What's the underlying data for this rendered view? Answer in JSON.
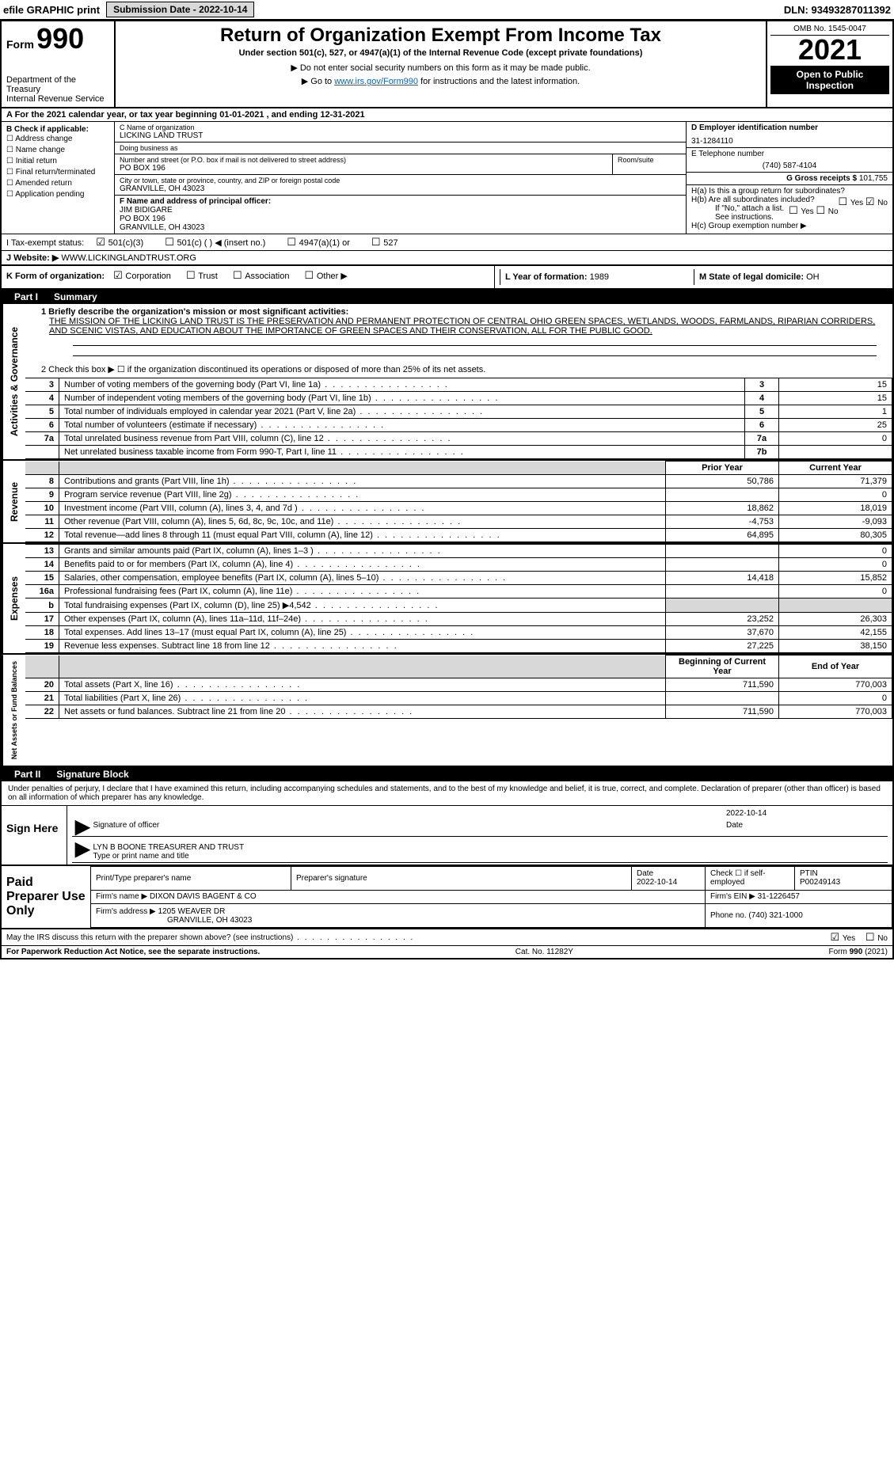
{
  "top_bar": {
    "efile_label": "efile GRAPHIC print",
    "submission_label": "Submission Date - 2022-10-14",
    "dln": "DLN: 93493287011392"
  },
  "header": {
    "form_word": "Form",
    "form_number": "990",
    "dept1": "Department of the Treasury",
    "dept2": "Internal Revenue Service",
    "title": "Return of Organization Exempt From Income Tax",
    "subtitle": "Under section 501(c), 527, or 4947(a)(1) of the Internal Revenue Code (except private foundations)",
    "note1": "Do not enter social security numbers on this form as it may be made public.",
    "note2_pre": "Go to ",
    "note2_link": "www.irs.gov/Form990",
    "note2_post": " for instructions and the latest information.",
    "omb": "OMB No. 1545-0047",
    "year": "2021",
    "badge": "Open to Public Inspection"
  },
  "row_a": "A For the 2021 calendar year, or tax year beginning 01-01-2021    , and ending 12-31-2021",
  "col_b": {
    "label": "B Check if applicable:",
    "items": [
      "Address change",
      "Name change",
      "Initial return",
      "Final return/terminated",
      "Amended return",
      "Application pending"
    ]
  },
  "col_c": {
    "c_label": "C Name of organization",
    "org": "LICKING LAND TRUST",
    "dba_label": "Doing business as",
    "dba": "",
    "addr_label": "Number and street (or P.O. box if mail is not delivered to street address)",
    "addr": "PO BOX 196",
    "room_label": "Room/suite",
    "city_label": "City or town, state or province, country, and ZIP or foreign postal code",
    "city": "GRANVILLE, OH  43023",
    "f_label": "F Name and address of principal officer:",
    "f_name": "JIM BIDIGARE",
    "f_addr1": "PO BOX 196",
    "f_addr2": "GRANVILLE, OH  43023"
  },
  "col_right": {
    "d_label": "D Employer identification number",
    "ein": "31-1284110",
    "e_label": "E Telephone number",
    "phone": "(740) 587-4104",
    "g_label": "G Gross receipts $",
    "g_val": "101,755",
    "h_a": "H(a)  Is this a group return for subordinates?",
    "h_a_yes": "Yes",
    "h_a_no": "No",
    "h_b": "H(b)  Are all subordinates included?",
    "h_b_yes": "Yes",
    "h_b_no": "No",
    "h_note": "If \"No,\" attach a list. See instructions.",
    "h_c": "H(c)  Group exemption number ▶"
  },
  "row_i": {
    "label": "I   Tax-exempt status:",
    "o1": "501(c)(3)",
    "o2": "501(c) (   ) ◀ (insert no.)",
    "o3": "4947(a)(1) or",
    "o4": "527"
  },
  "row_j": {
    "label": "J   Website: ▶",
    "val": "WWW.LICKINGLANDTRUST.ORG"
  },
  "row_k": {
    "label": "K Form of organization:",
    "o1": "Corporation",
    "o2": "Trust",
    "o3": "Association",
    "o4": "Other ▶"
  },
  "row_l": {
    "l_label": "L Year of formation:",
    "l_val": "1989",
    "m_label": "M State of legal domicile:",
    "m_val": "OH"
  },
  "part1": {
    "title": "Part I",
    "name": "Summary",
    "line1_label": "1  Briefly describe the organization's mission or most significant activities:",
    "mission": "THE MISSION OF THE LICKING LAND TRUST IS THE PRESERVATION AND PERMANENT PROTECTION OF CENTRAL OHIO GREEN SPACES, WETLANDS, WOODS, FARMLANDS, RIPARIAN CORRIDERS, AND SCENIC VISTAS, AND EDUCATION ABOUT THE IMPORTANCE OF GREEN SPACES AND THEIR CONSERVATION, ALL FOR THE PUBLIC GOOD.",
    "line2": "2  Check this box ▶ ☐  if the organization discontinued its operations or disposed of more than 25% of its net assets."
  },
  "gov_lines": [
    {
      "n": "3",
      "d": "Number of voting members of the governing body (Part VI, line 1a)",
      "b": "3",
      "v": "15"
    },
    {
      "n": "4",
      "d": "Number of independent voting members of the governing body (Part VI, line 1b)",
      "b": "4",
      "v": "15"
    },
    {
      "n": "5",
      "d": "Total number of individuals employed in calendar year 2021 (Part V, line 2a)",
      "b": "5",
      "v": "1"
    },
    {
      "n": "6",
      "d": "Total number of volunteers (estimate if necessary)",
      "b": "6",
      "v": "25"
    },
    {
      "n": "7a",
      "d": "Total unrelated business revenue from Part VIII, column (C), line 12",
      "b": "7a",
      "v": "0"
    },
    {
      "n": "",
      "d": "Net unrelated business taxable income from Form 990-T, Part I, line 11",
      "b": "7b",
      "v": ""
    }
  ],
  "rev_headers": {
    "prior": "Prior Year",
    "current": "Current Year"
  },
  "rev_lines": [
    {
      "n": "8",
      "d": "Contributions and grants (Part VIII, line 1h)",
      "p": "50,786",
      "c": "71,379"
    },
    {
      "n": "9",
      "d": "Program service revenue (Part VIII, line 2g)",
      "p": "",
      "c": "0"
    },
    {
      "n": "10",
      "d": "Investment income (Part VIII, column (A), lines 3, 4, and 7d )",
      "p": "18,862",
      "c": "18,019"
    },
    {
      "n": "11",
      "d": "Other revenue (Part VIII, column (A), lines 5, 6d, 8c, 9c, 10c, and 11e)",
      "p": "-4,753",
      "c": "-9,093"
    },
    {
      "n": "12",
      "d": "Total revenue—add lines 8 through 11 (must equal Part VIII, column (A), line 12)",
      "p": "64,895",
      "c": "80,305"
    }
  ],
  "exp_lines": [
    {
      "n": "13",
      "d": "Grants and similar amounts paid (Part IX, column (A), lines 1–3 )",
      "p": "",
      "c": "0"
    },
    {
      "n": "14",
      "d": "Benefits paid to or for members (Part IX, column (A), line 4)",
      "p": "",
      "c": "0"
    },
    {
      "n": "15",
      "d": "Salaries, other compensation, employee benefits (Part IX, column (A), lines 5–10)",
      "p": "14,418",
      "c": "15,852"
    },
    {
      "n": "16a",
      "d": "Professional fundraising fees (Part IX, column (A), line 11e)",
      "p": "",
      "c": "0"
    },
    {
      "n": "b",
      "d": "Total fundraising expenses (Part IX, column (D), line 25) ▶4,542",
      "p": "__SHADE__",
      "c": "__SHADE__"
    },
    {
      "n": "17",
      "d": "Other expenses (Part IX, column (A), lines 11a–11d, 11f–24e)",
      "p": "23,252",
      "c": "26,303"
    },
    {
      "n": "18",
      "d": "Total expenses. Add lines 13–17 (must equal Part IX, column (A), line 25)",
      "p": "37,670",
      "c": "42,155"
    },
    {
      "n": "19",
      "d": "Revenue less expenses. Subtract line 18 from line 12",
      "p": "27,225",
      "c": "38,150"
    }
  ],
  "na_headers": {
    "beg": "Beginning of Current Year",
    "end": "End of Year"
  },
  "na_lines": [
    {
      "n": "20",
      "d": "Total assets (Part X, line 16)",
      "p": "711,590",
      "c": "770,003"
    },
    {
      "n": "21",
      "d": "Total liabilities (Part X, line 26)",
      "p": "",
      "c": "0"
    },
    {
      "n": "22",
      "d": "Net assets or fund balances. Subtract line 21 from line 20",
      "p": "711,590",
      "c": "770,003"
    }
  ],
  "vert": {
    "gov": "Activities & Governance",
    "rev": "Revenue",
    "exp": "Expenses",
    "na": "Net Assets or Fund Balances"
  },
  "part2": {
    "title": "Part II",
    "name": "Signature Block",
    "decl": "Under penalties of perjury, I declare that I have examined this return, including accompanying schedules and statements, and to the best of my knowledge and belief, it is true, correct, and complete. Declaration of preparer (other than officer) is based on all information of which preparer has any knowledge."
  },
  "sign": {
    "label": "Sign Here",
    "sig_officer": "Signature of officer",
    "date_label": "Date",
    "date": "2022-10-14",
    "name": "LYN B BOONE TREASURER AND TRUST",
    "name_label": "Type or print name and title"
  },
  "preparer": {
    "label": "Paid Preparer Use Only",
    "h1": "Print/Type preparer's name",
    "h2": "Preparer's signature",
    "h3": "Date",
    "h3v": "2022-10-14",
    "h4": "Check ☐ if self-employed",
    "h5": "PTIN",
    "ptin": "P00249143",
    "firm_name_l": "Firm's name    ▶",
    "firm_name": "DIXON DAVIS BAGENT & CO",
    "firm_ein_l": "Firm's EIN ▶",
    "firm_ein": "31-1226457",
    "firm_addr_l": "Firm's address ▶",
    "firm_addr1": "1205 WEAVER DR",
    "firm_addr2": "GRANVILLE, OH  43023",
    "phone_l": "Phone no.",
    "phone": "(740) 321-1000"
  },
  "footer": {
    "q": "May the IRS discuss this return with the preparer shown above? (see instructions)",
    "yes": "Yes",
    "no": "No",
    "pra": "For Paperwork Reduction Act Notice, see the separate instructions.",
    "cat": "Cat. No. 11282Y",
    "form": "Form 990 (2021)"
  }
}
